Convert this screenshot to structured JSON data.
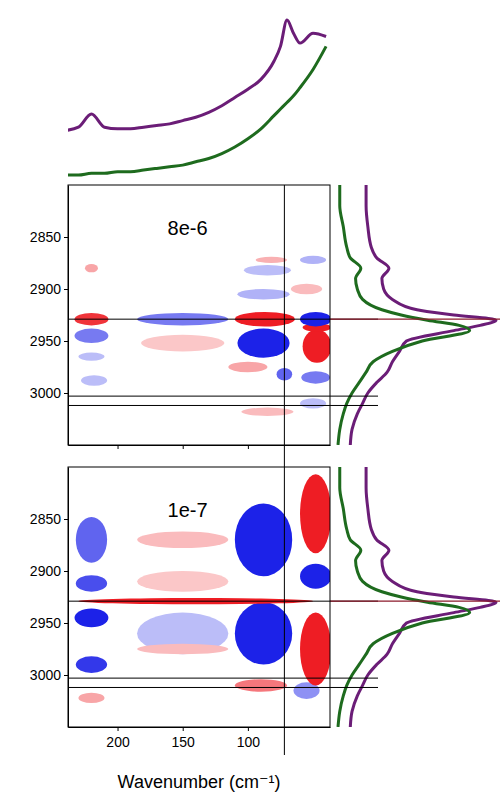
{
  "chart_data": {
    "type": "contour",
    "xlabel": "Wavenumber (cm⁻¹)",
    "xlim": [
      238,
      37
    ],
    "xticks": [
      200,
      150,
      100
    ],
    "ylim": [
      2800,
      3050
    ],
    "yticks": [
      2850,
      2900,
      2950,
      3000
    ],
    "zlim": [
      -1,
      1
    ],
    "vlines": [
      72
    ],
    "hlines": [
      2929,
      3003,
      3012
    ],
    "peak_line": {
      "value": 2929,
      "color": "#8b1a2b"
    },
    "top_spectrum": {
      "type": "line",
      "x": [
        240,
        230,
        220,
        210,
        200,
        190,
        180,
        170,
        160,
        150,
        140,
        130,
        120,
        110,
        100,
        90,
        80,
        75,
        70,
        65,
        60,
        50,
        40
      ],
      "series": [
        {
          "color": "#6b1d77",
          "values": [
            0.29,
            0.31,
            0.39,
            0.31,
            0.3,
            0.3,
            0.31,
            0.32,
            0.33,
            0.35,
            0.37,
            0.4,
            0.44,
            0.49,
            0.54,
            0.6,
            0.71,
            0.8,
            0.96,
            0.88,
            0.82,
            0.88,
            0.86
          ]
        },
        {
          "color": "#1e6b1e",
          "values": [
            0.02,
            0.02,
            0.03,
            0.03,
            0.04,
            0.04,
            0.05,
            0.06,
            0.07,
            0.08,
            0.1,
            0.12,
            0.15,
            0.19,
            0.24,
            0.3,
            0.38,
            0.42,
            0.46,
            0.5,
            0.55,
            0.66,
            0.8
          ]
        }
      ]
    },
    "side_spectra": {
      "type": "line",
      "wavenumbers": [
        2800,
        2820,
        2840,
        2860,
        2870,
        2880,
        2890,
        2900,
        2910,
        2920,
        2925,
        2930,
        2935,
        2940,
        2950,
        2960,
        2970,
        2980,
        2990,
        3000,
        3010,
        3020,
        3035,
        3050
      ],
      "series": [
        {
          "color": "#6b1d77",
          "values": [
            0.23,
            0.23,
            0.24,
            0.26,
            0.29,
            0.36,
            0.32,
            0.33,
            0.38,
            0.52,
            0.73,
            0.97,
            0.88,
            0.73,
            0.46,
            0.42,
            0.38,
            0.35,
            0.29,
            0.24,
            0.21,
            0.18,
            0.15,
            0.14
          ]
        },
        {
          "color": "#1e6b1e",
          "values": [
            0.08,
            0.08,
            0.1,
            0.12,
            0.14,
            0.2,
            0.17,
            0.18,
            0.21,
            0.32,
            0.43,
            0.58,
            0.76,
            0.82,
            0.55,
            0.38,
            0.27,
            0.23,
            0.19,
            0.15,
            0.12,
            0.1,
            0.08,
            0.07
          ]
        }
      ]
    },
    "panels": [
      {
        "label": "8e-6",
        "features": [
          {
            "x": 150,
            "y": 2952,
            "dx": 32,
            "dy": 8,
            "value": 0.25
          },
          {
            "x": 220,
            "y": 2965,
            "dx": 10,
            "dy": 4,
            "value": -0.3
          },
          {
            "x": 218,
            "y": 2988,
            "dx": 10,
            "dy": 5,
            "value": -0.3
          },
          {
            "x": 85,
            "y": 2882,
            "dx": 18,
            "dy": 5,
            "value": -0.3
          },
          {
            "x": 82,
            "y": 2872,
            "dx": 12,
            "dy": 3,
            "value": 0.35
          },
          {
            "x": 50,
            "y": 2872,
            "dx": 10,
            "dy": 4,
            "value": -0.35
          },
          {
            "x": 55,
            "y": 2900,
            "dx": 12,
            "dy": 5,
            "value": 0.3
          },
          {
            "x": 88,
            "y": 2905,
            "dx": 20,
            "dy": 5,
            "value": -0.35
          },
          {
            "x": 85,
            "y": 3018,
            "dx": 20,
            "dy": 4,
            "value": 0.3
          },
          {
            "x": 50,
            "y": 3010,
            "dx": 10,
            "dy": 5,
            "value": -0.3
          },
          {
            "x": 220,
            "y": 2880,
            "dx": 5,
            "dy": 4,
            "value": 0.4
          },
          {
            "x": 100,
            "y": 2975,
            "dx": 15,
            "dy": 5,
            "value": 0.4
          },
          {
            "x": 220,
            "y": 2945,
            "dx": 13,
            "dy": 7,
            "value": -0.6
          },
          {
            "x": 48,
            "y": 2985,
            "dx": 11,
            "dy": 6,
            "value": -0.6
          },
          {
            "x": 72,
            "y": 2982,
            "dx": 6,
            "dy": 6,
            "value": -0.7
          },
          {
            "x": 88,
            "y": 2952,
            "dx": 20,
            "dy": 14,
            "value": -1
          },
          {
            "x": 47,
            "y": 2955,
            "dx": 11,
            "dy": 16,
            "value": 1
          },
          {
            "x": 47,
            "y": 2937,
            "dx": 11,
            "dy": 4,
            "value": 1
          },
          {
            "x": 150,
            "y": 2929,
            "dx": 35,
            "dy": 6,
            "value": -0.6
          },
          {
            "x": 220,
            "y": 2929,
            "dx": 13,
            "dy": 6,
            "value": 0.9
          },
          {
            "x": 87,
            "y": 2929,
            "dx": 23,
            "dy": 7,
            "value": 1
          },
          {
            "x": 48,
            "y": 2929,
            "dx": 12,
            "dy": 7,
            "value": -1
          }
        ]
      },
      {
        "label": "1e-7",
        "features": [
          {
            "x": 150,
            "y": 2960,
            "dx": 35,
            "dy": 20,
            "value": -0.3
          },
          {
            "x": 150,
            "y": 2870,
            "dx": 35,
            "dy": 8,
            "value": 0.3
          },
          {
            "x": 150,
            "y": 2975,
            "dx": 35,
            "dy": 5,
            "value": 0.3
          },
          {
            "x": 150,
            "y": 2910,
            "dx": 35,
            "dy": 10,
            "value": 0.25
          },
          {
            "x": 220,
            "y": 3022,
            "dx": 10,
            "dy": 5,
            "value": 0.4
          },
          {
            "x": 55,
            "y": 3015,
            "dx": 10,
            "dy": 8,
            "value": -0.5
          },
          {
            "x": 90,
            "y": 3010,
            "dx": 20,
            "dy": 6,
            "value": 0.6
          },
          {
            "x": 220,
            "y": 2870,
            "dx": 12,
            "dy": 22,
            "value": -0.7
          },
          {
            "x": 220,
            "y": 2912,
            "dx": 12,
            "dy": 8,
            "value": -0.8
          },
          {
            "x": 220,
            "y": 2945,
            "dx": 13,
            "dy": 9,
            "value": -1
          },
          {
            "x": 220,
            "y": 2990,
            "dx": 12,
            "dy": 8,
            "value": -0.9
          },
          {
            "x": 88,
            "y": 2870,
            "dx": 22,
            "dy": 35,
            "value": -1
          },
          {
            "x": 88,
            "y": 2960,
            "dx": 22,
            "dy": 30,
            "value": -1
          },
          {
            "x": 48,
            "y": 2845,
            "dx": 12,
            "dy": 38,
            "value": 1
          },
          {
            "x": 48,
            "y": 2905,
            "dx": 12,
            "dy": 12,
            "value": -1
          },
          {
            "x": 48,
            "y": 2975,
            "dx": 12,
            "dy": 35,
            "value": 1
          },
          {
            "x": 140,
            "y": 2929,
            "dx": 90,
            "dy": 3,
            "value": 1
          }
        ]
      }
    ]
  }
}
